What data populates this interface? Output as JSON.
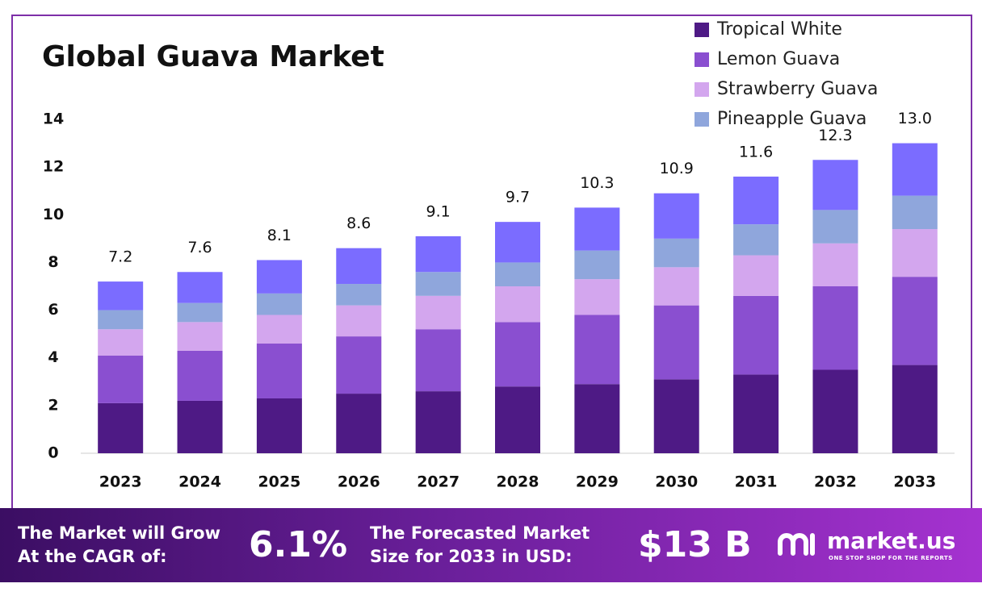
{
  "chart_data": {
    "type": "stacked_bar",
    "title": "Global Guava Market",
    "categories": [
      "2023",
      "2024",
      "2025",
      "2026",
      "2027",
      "2028",
      "2029",
      "2030",
      "2031",
      "2032",
      "2033"
    ],
    "series": [
      {
        "name": "Tropical White",
        "color": "#4e1a85",
        "values": [
          2.1,
          2.2,
          2.3,
          2.5,
          2.6,
          2.8,
          2.9,
          3.1,
          3.3,
          3.5,
          3.7
        ]
      },
      {
        "name": "Lemon Guava",
        "color": "#8a4fd0",
        "values": [
          2.0,
          2.1,
          2.3,
          2.4,
          2.6,
          2.7,
          2.9,
          3.1,
          3.3,
          3.5,
          3.7
        ]
      },
      {
        "name": "Strawberry Guava",
        "color": "#d3a6ee",
        "values": [
          1.1,
          1.2,
          1.2,
          1.3,
          1.4,
          1.5,
          1.5,
          1.6,
          1.7,
          1.8,
          2.0
        ]
      },
      {
        "name": "Pineapple Guava",
        "color": "#8fa6dc",
        "values": [
          0.8,
          0.8,
          0.9,
          0.9,
          1.0,
          1.0,
          1.2,
          1.2,
          1.3,
          1.4,
          1.4
        ]
      },
      {
        "color": "#7b6cff",
        "values": [
          1.2,
          1.3,
          1.4,
          1.5,
          1.5,
          1.7,
          1.8,
          1.9,
          2.0,
          2.1,
          2.2
        ]
      }
    ],
    "totals": [
      7.2,
      7.6,
      8.1,
      8.6,
      9.1,
      9.7,
      10.3,
      10.9,
      11.6,
      12.3,
      13.0
    ],
    "total_value_labels": [
      "7.2",
      "7.6",
      "8.1",
      "8.6",
      "9.1",
      "9.7",
      "10.3",
      "10.9",
      "11.6",
      "12.3",
      "13.0"
    ],
    "ylim": [
      0,
      14
    ],
    "yticks": [
      0,
      2,
      4,
      6,
      8,
      10,
      12,
      14
    ],
    "grid": false,
    "legend": "top-right"
  },
  "footer": {
    "cagr_text": [
      "The Market will Grow",
      "At the CAGR of:"
    ],
    "cagr": "6.1%",
    "size_text": [
      "The Forecasted Market",
      "Size for 2033 in USD:"
    ],
    "size": "$13 B",
    "logo": "market.us",
    "tagline": "ONE STOP SHOP FOR THE REPORTS"
  }
}
